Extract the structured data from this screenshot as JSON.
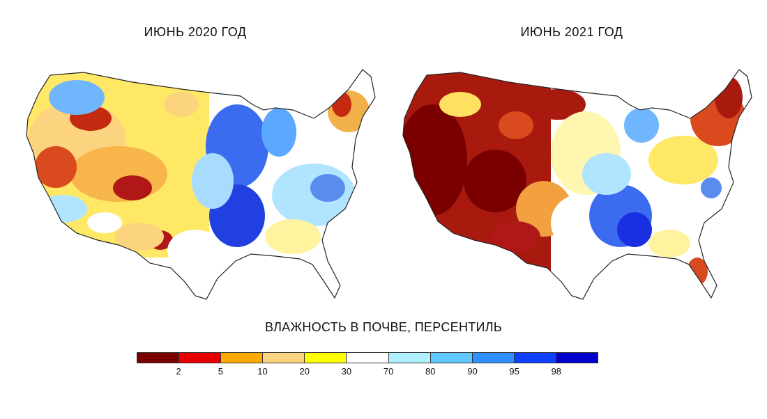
{
  "maps": [
    {
      "title": "ИЮНЬ 2020 ГОД"
    },
    {
      "title": "ИЮНЬ 2021 ГОД"
    }
  ],
  "legend": {
    "title": "ВЛАЖНОСТЬ В ПОЧВЕ, ПЕРСЕНТИЛЬ",
    "colors": [
      "#7a0000",
      "#e60000",
      "#ffaa00",
      "#fcd37f",
      "#ffff00",
      "#ffffff",
      "#b0f0ff",
      "#60c8ff",
      "#3090ff",
      "#1040ff",
      "#0000cc"
    ],
    "ticks": [
      "2",
      "5",
      "10",
      "20",
      "30",
      "70",
      "80",
      "90",
      "95",
      "98"
    ]
  }
}
